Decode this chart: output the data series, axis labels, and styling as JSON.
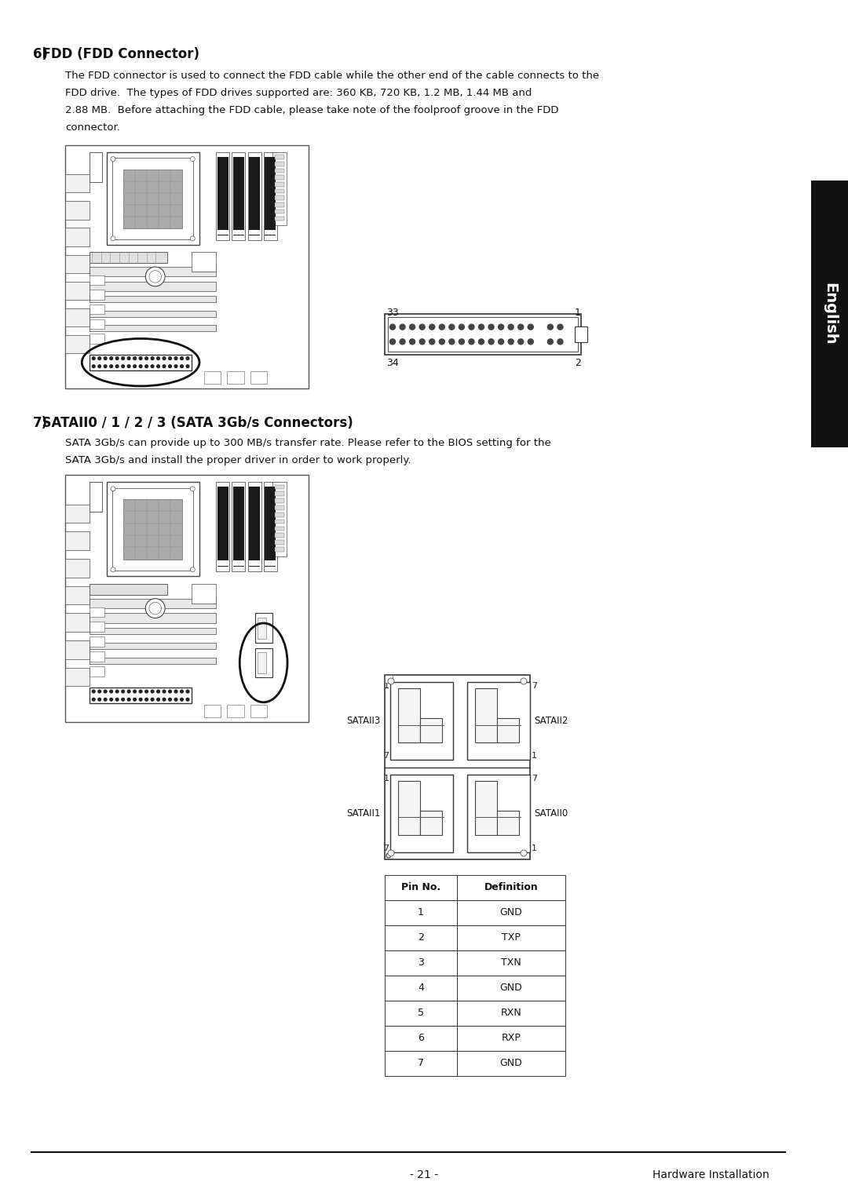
{
  "bg_color": "#ffffff",
  "page_width": 10.8,
  "page_height": 15.29,
  "sidebar_color": "#111111",
  "sidebar_text": "English",
  "section6_number": "6)",
  "section6_title": "  FDD (FDD Connector)",
  "section6_body1": "The FDD connector is used to connect the FDD cable while the other end of the cable connects to the",
  "section6_body2": "FDD drive.  The types of FDD drives supported are: 360 KB, 720 KB, 1.2 MB, 1.44 MB and",
  "section6_body3": "2.88 MB.  Before attaching the FDD cable, please take note of the foolproof groove in the FDD",
  "section6_body4": "connector.",
  "section7_number": "7)",
  "section7_title": "  SATAII0 / 1 / 2 / 3 (SATA 3Gb/s Connectors)",
  "section7_body1": "SATA 3Gb/s can provide up to 300 MB/s transfer rate. Please refer to the BIOS setting for the",
  "section7_body2": "SATA 3Gb/s and install the proper driver in order to work properly.",
  "footer_page": "- 21 -",
  "footer_right": "Hardware Installation",
  "pin_table_headers": [
    "Pin No.",
    "Definition"
  ],
  "pin_table_rows": [
    [
      "1",
      "GND"
    ],
    [
      "2",
      "TXP"
    ],
    [
      "3",
      "TXN"
    ],
    [
      "4",
      "GND"
    ],
    [
      "5",
      "RXN"
    ],
    [
      "6",
      "RXP"
    ],
    [
      "7",
      "GND"
    ]
  ]
}
